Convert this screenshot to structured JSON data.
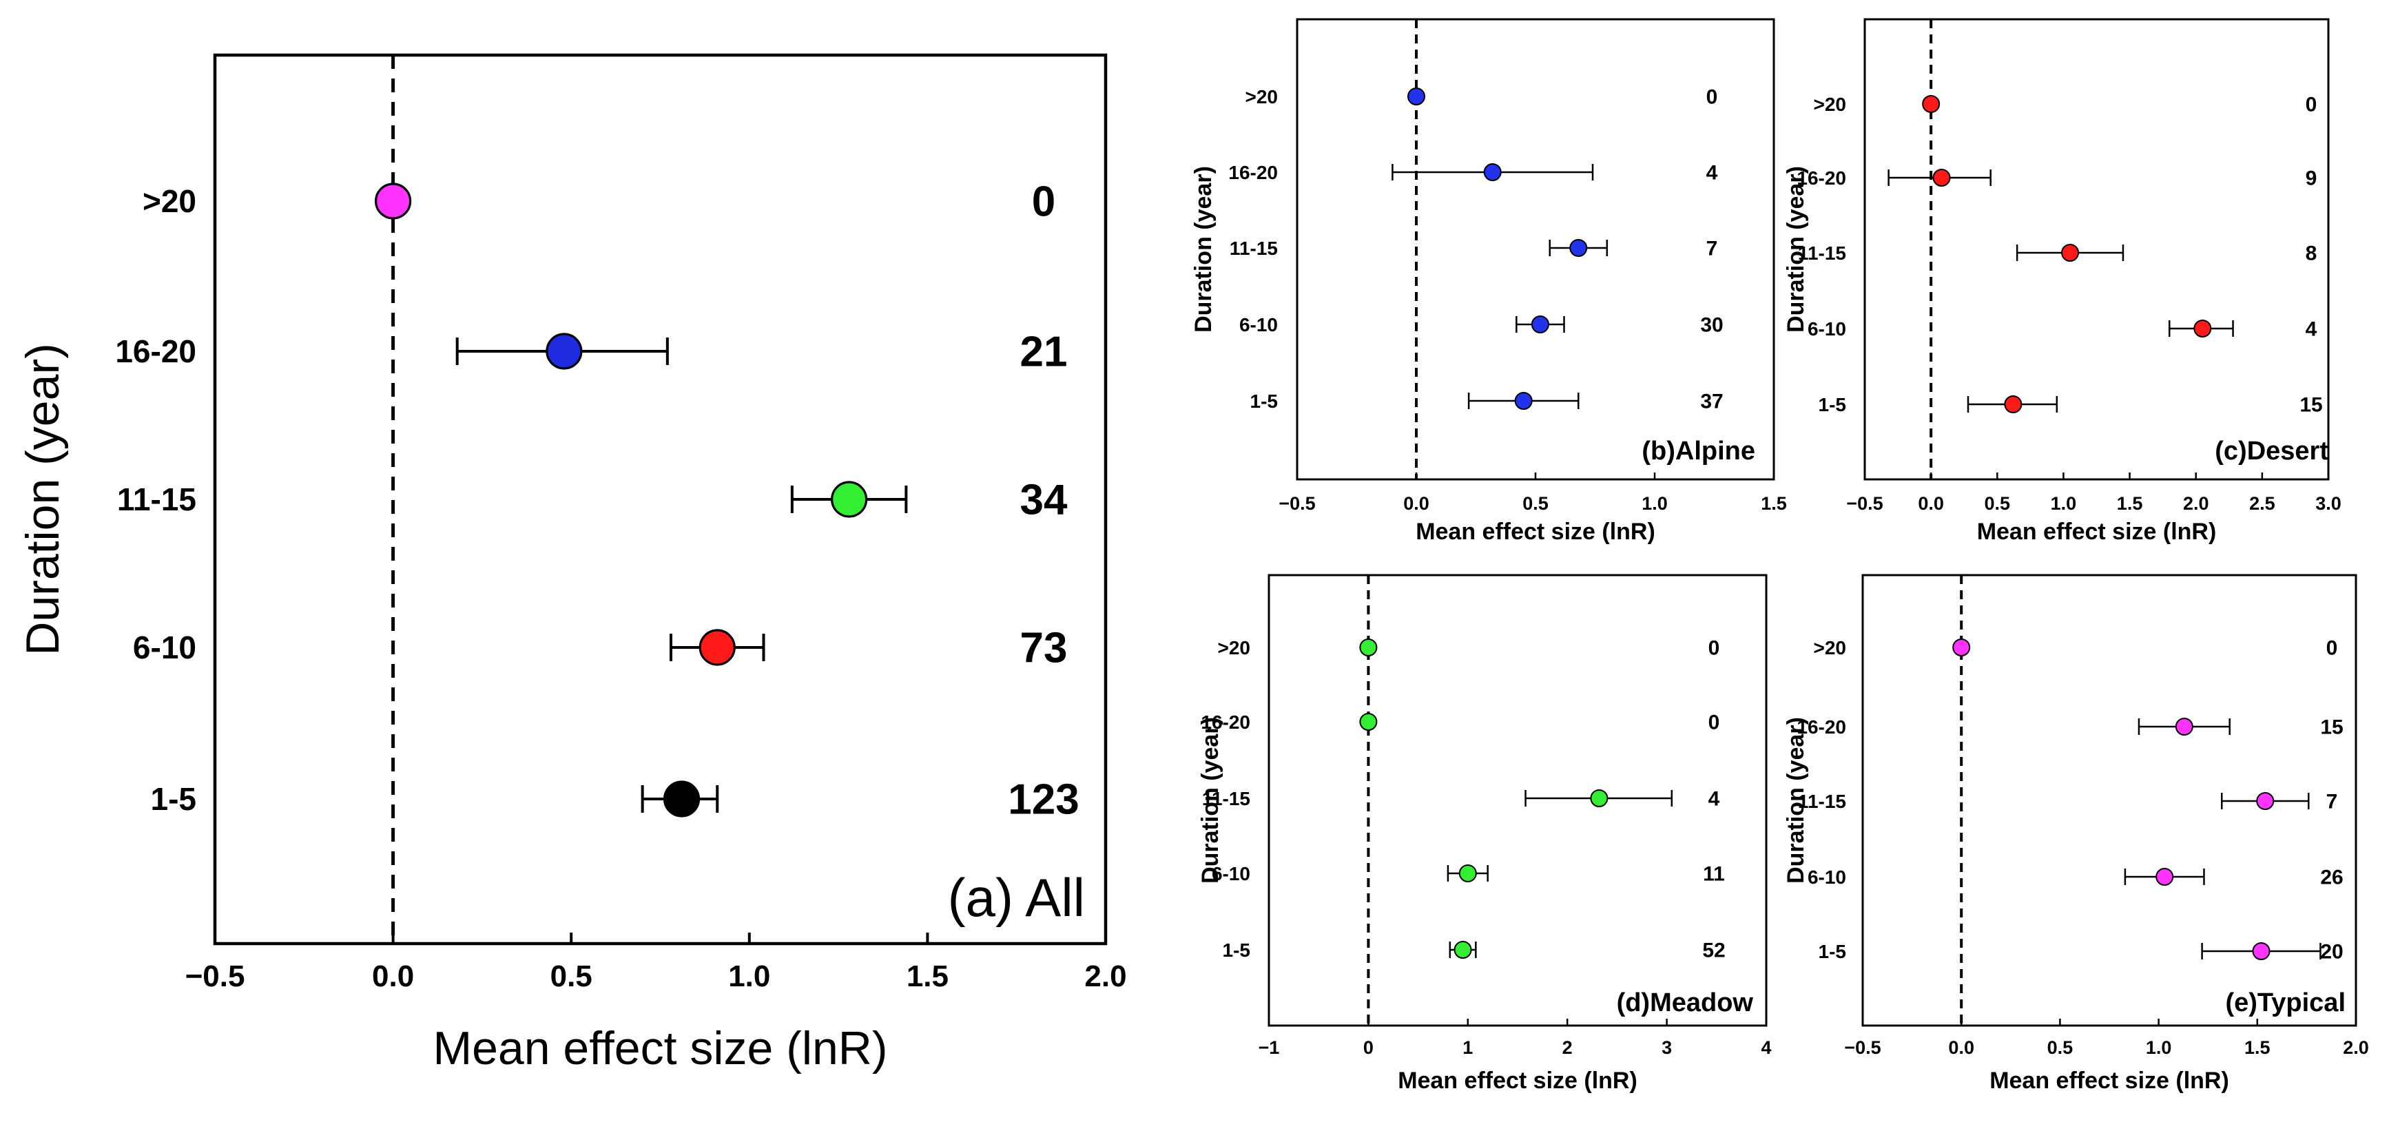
{
  "chart_data": [
    {
      "type": "scatter",
      "panel_label": "(a) All",
      "xlabel": "Mean effect size (lnR)",
      "ylabel": "Duration (year)",
      "xlim": [
        -0.5,
        2.0
      ],
      "xticks": [
        "−0.5",
        "0.0",
        "0.5",
        "1.0",
        "1.5",
        "2.0"
      ],
      "reference_line_x": 0,
      "categories": [
        ">20",
        "16-20",
        "11-15",
        "6-10",
        "1-5"
      ],
      "means": [
        0.0,
        0.48,
        1.28,
        0.91,
        0.81
      ],
      "ci_low": [
        0.0,
        0.18,
        1.12,
        0.78,
        0.7
      ],
      "ci_high": [
        0.0,
        0.77,
        1.44,
        1.04,
        0.91
      ],
      "n": [
        "0",
        "21",
        "34",
        "73",
        "123"
      ],
      "point_colors": [
        "#ff33ff",
        "#1f2be0",
        "#33ee33",
        "#ff1a1a",
        "#000000"
      ]
    },
    {
      "type": "scatter",
      "panel_label": "(b)Alpine",
      "xlabel": "Mean effect size (lnR)",
      "ylabel": "Duration (year)",
      "xlim": [
        -0.5,
        1.5
      ],
      "xticks": [
        "−0.5",
        "0.0",
        "0.5",
        "1.0",
        "1.5"
      ],
      "reference_line_x": 0,
      "categories": [
        ">20",
        "16-20",
        "11-15",
        "6-10",
        "1-5"
      ],
      "means": [
        0.0,
        0.32,
        0.68,
        0.52,
        0.45
      ],
      "ci_low": [
        0.0,
        -0.1,
        0.56,
        0.42,
        0.22
      ],
      "ci_high": [
        0.0,
        0.74,
        0.8,
        0.62,
        0.68
      ],
      "n": [
        "0",
        "4",
        "7",
        "30",
        "37"
      ],
      "point_color": "#2233ee"
    },
    {
      "type": "scatter",
      "panel_label": "(c)Desert",
      "xlabel": "Mean effect size (lnR)",
      "ylabel": "Duration (year)",
      "xlim": [
        -0.5,
        3.0
      ],
      "xticks": [
        "−0.5",
        "0.0",
        "0.5",
        "1.0",
        "1.5",
        "2.0",
        "2.5",
        "3.0"
      ],
      "reference_line_x": 0,
      "categories": [
        ">20",
        "16-20",
        "11-15",
        "6-10",
        "1-5"
      ],
      "means": [
        0.0,
        0.08,
        1.05,
        2.05,
        0.62
      ],
      "ci_low": [
        0.0,
        -0.32,
        0.65,
        1.8,
        0.28
      ],
      "ci_high": [
        0.0,
        0.45,
        1.45,
        2.28,
        0.95
      ],
      "n": [
        "0",
        "9",
        "8",
        "4",
        "15"
      ],
      "point_color": "#ff1a1a"
    },
    {
      "type": "scatter",
      "panel_label": "(d)Meadow",
      "xlabel": "Mean effect size (lnR)",
      "ylabel": "Duration (year)",
      "xlim": [
        -1,
        4
      ],
      "xticks": [
        "−1",
        "0",
        "1",
        "2",
        "3",
        "4"
      ],
      "reference_line_x": 0,
      "categories": [
        ">20",
        "16-20",
        "11-15",
        "6-10",
        "1-5"
      ],
      "means": [
        0.0,
        0.0,
        2.32,
        1.0,
        0.95
      ],
      "ci_low": [
        0.0,
        0.0,
        1.58,
        0.8,
        0.82
      ],
      "ci_high": [
        0.0,
        0.0,
        3.05,
        1.2,
        1.08
      ],
      "n": [
        "0",
        "0",
        "4",
        "11",
        "52"
      ],
      "point_color": "#33ee33"
    },
    {
      "type": "scatter",
      "panel_label": "(e)Typical",
      "xlabel": "Mean effect size (lnR)",
      "ylabel": "Duration (year)",
      "xlim": [
        -0.5,
        2.0
      ],
      "xticks": [
        "−0.5",
        "0.0",
        "0.5",
        "1.0",
        "1.5",
        "2.0"
      ],
      "reference_line_x": 0,
      "categories": [
        ">20",
        "16-20",
        "11-15",
        "6-10",
        "1-5"
      ],
      "means": [
        0.0,
        1.13,
        1.54,
        1.03,
        1.52
      ],
      "ci_low": [
        0.0,
        0.9,
        1.32,
        0.83,
        1.22
      ],
      "ci_high": [
        0.0,
        1.36,
        1.76,
        1.23,
        1.82
      ],
      "n": [
        "0",
        "15",
        "7",
        "26",
        "20"
      ],
      "point_color": "#ff33ff"
    }
  ]
}
